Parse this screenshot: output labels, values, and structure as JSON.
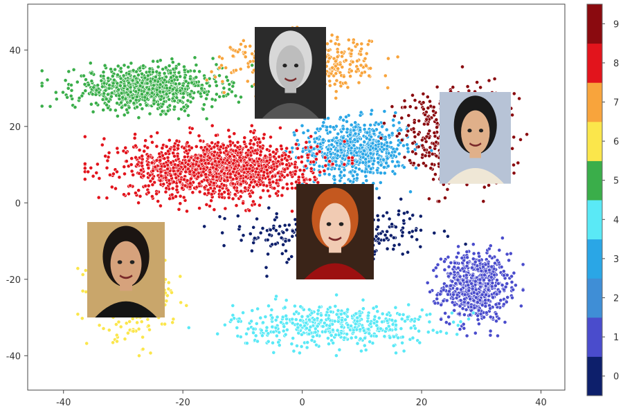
{
  "chart_data": {
    "type": "scatter",
    "title": "",
    "xlabel": "",
    "ylabel": "",
    "xlim": [
      -46,
      44
    ],
    "ylim": [
      -49,
      52
    ],
    "x_ticks": [
      -40,
      -20,
      0,
      20,
      40
    ],
    "y_ticks": [
      -40,
      -20,
      0,
      20,
      40
    ],
    "grid": false,
    "colorbar": {
      "labels": [
        "0",
        "1",
        "2",
        "3",
        "4",
        "5",
        "6",
        "7",
        "8",
        "9"
      ],
      "colors": [
        "#0d1f6b",
        "#4a4ccc",
        "#3f8ed6",
        "#2aa6e6",
        "#5ae9f6",
        "#3aae4a",
        "#fbe64b",
        "#f8a43c",
        "#e2141c",
        "#8a0a0f"
      ]
    },
    "clusters": [
      {
        "label": "0",
        "color": "#0d1f6b",
        "cx": 6,
        "cy": -8,
        "sx": 14,
        "sy": 7,
        "n": 340
      },
      {
        "label": "1",
        "color": "#4a4ccc",
        "cx": 29,
        "cy": -22,
        "sx": 5,
        "sy": 8,
        "n": 650
      },
      {
        "label": "3",
        "color": "#2aa6e6",
        "cx": 9,
        "cy": 14,
        "sx": 8,
        "sy": 7,
        "n": 650
      },
      {
        "label": "4",
        "color": "#5ae9f6",
        "cx": 5,
        "cy": -32,
        "sx": 15,
        "sy": 5,
        "n": 470
      },
      {
        "label": "5",
        "color": "#3aae4a",
        "cx": -26,
        "cy": 30,
        "sx": 11,
        "sy": 5,
        "n": 850
      },
      {
        "label": "6",
        "color": "#fbe64b",
        "cx": -28,
        "cy": -24,
        "sx": 6,
        "sy": 10,
        "n": 330
      },
      {
        "label": "7",
        "color": "#f8a43c",
        "cx": 0,
        "cy": 37,
        "sx": 10,
        "sy": 6,
        "n": 560
      },
      {
        "label": "8",
        "color": "#e2141c",
        "cx": -14,
        "cy": 9,
        "sx": 14,
        "sy": 7,
        "n": 1400
      },
      {
        "label": "9",
        "color": "#8a0a0f",
        "cx": 26,
        "cy": 18,
        "sx": 8,
        "sy": 11,
        "n": 620
      }
    ],
    "images": [
      {
        "label": "portrait-woman-bw",
        "x_range": [
          -8,
          4
        ],
        "y_range": [
          22,
          46
        ]
      },
      {
        "label": "portrait-man-smiling",
        "x_range": [
          23,
          35
        ],
        "y_range": [
          5,
          29
        ]
      },
      {
        "label": "portrait-woman-red-hair",
        "x_range": [
          -1,
          12
        ],
        "y_range": [
          -20,
          5
        ]
      },
      {
        "label": "portrait-man-bowtie",
        "x_range": [
          -36,
          -23
        ],
        "y_range": [
          -30,
          -5
        ]
      }
    ]
  }
}
